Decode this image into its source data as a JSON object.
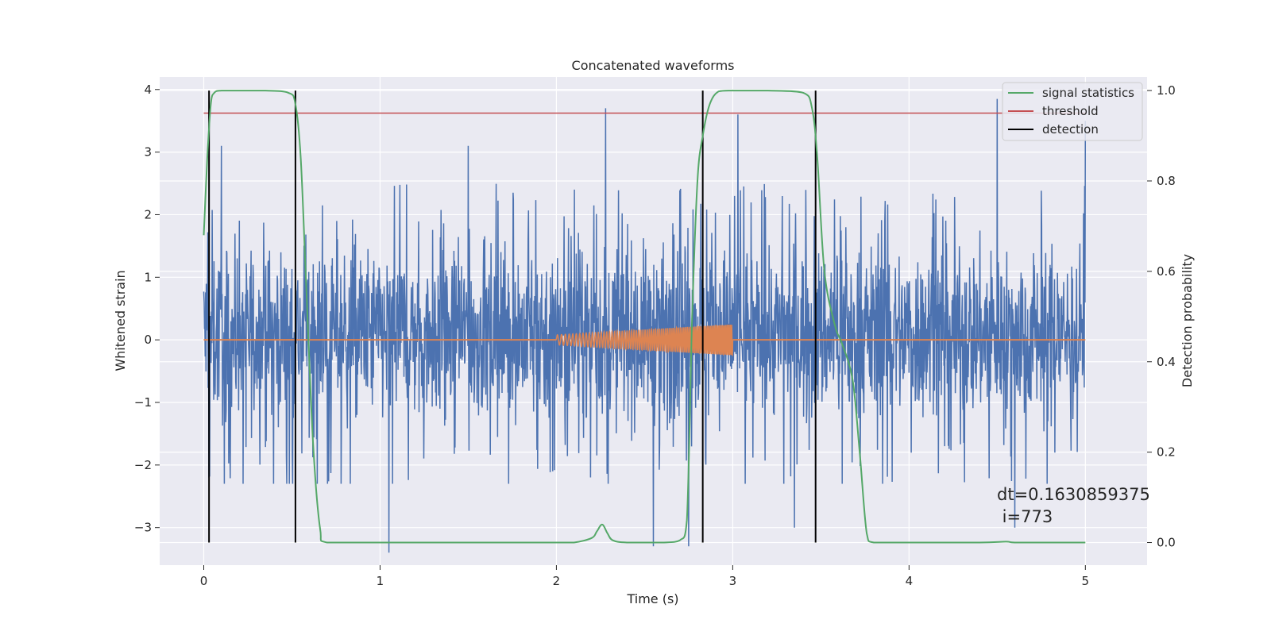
{
  "chart_data": {
    "type": "line",
    "title": "Concatenated waveforms",
    "xlabel": "Time (s)",
    "ylabel": "Whitened strain",
    "y2label": "Detection probability",
    "xlim": [
      -0.25,
      5.35
    ],
    "ylim": [
      -3.6,
      4.2
    ],
    "y2lim": [
      -0.05,
      1.03
    ],
    "x_ticks": [
      0,
      1,
      2,
      3,
      4,
      5
    ],
    "y_ticks": [
      -3,
      -2,
      -1,
      0,
      1,
      2,
      3,
      4
    ],
    "y2_ticks": [
      0.0,
      0.2,
      0.4,
      0.6,
      0.8,
      1.0
    ],
    "x_tick_labels": [
      "0",
      "1",
      "2",
      "3",
      "4",
      "5"
    ],
    "y_tick_labels": [
      "−3",
      "−2",
      "−1",
      "0",
      "1",
      "2",
      "3",
      "4"
    ],
    "y2_tick_labels": [
      "0.0",
      "0.2",
      "0.4",
      "0.6",
      "0.8",
      "1.0"
    ],
    "grid": true,
    "legend_position": "top-right",
    "colors": {
      "background": "#eaeaf2",
      "strain": "#4c72b0",
      "injection": "#dd8452",
      "statistics": "#55a868",
      "threshold": "#c44e52",
      "detection": "#000000",
      "grid": "#ffffff"
    },
    "series": [
      {
        "name": "signal statistics",
        "axis": "right",
        "x": [
          0.0,
          0.02,
          0.04,
          0.06,
          0.1,
          0.2,
          0.35,
          0.48,
          0.52,
          0.55,
          0.58,
          0.62,
          0.66,
          0.7,
          1.0,
          1.5,
          2.0,
          2.1,
          2.2,
          2.23,
          2.26,
          2.29,
          2.32,
          2.4,
          2.6,
          2.7,
          2.74,
          2.77,
          2.8,
          2.83,
          2.87,
          2.92,
          3.0,
          3.2,
          3.4,
          3.45,
          3.48,
          3.52,
          3.58,
          3.62,
          3.68,
          3.72,
          3.76,
          3.8,
          4.0,
          4.4,
          4.55,
          4.6,
          4.8,
          5.0
        ],
        "y": [
          0.68,
          0.85,
          0.97,
          0.995,
          1.0,
          1.0,
          1.0,
          0.995,
          0.97,
          0.85,
          0.58,
          0.22,
          0.03,
          0.0,
          0.0,
          0.0,
          0.0,
          0.0,
          0.01,
          0.025,
          0.04,
          0.02,
          0.005,
          0.0,
          0.0,
          0.005,
          0.05,
          0.5,
          0.8,
          0.9,
          0.97,
          0.998,
          1.0,
          1.0,
          0.995,
          0.96,
          0.85,
          0.6,
          0.48,
          0.44,
          0.36,
          0.2,
          0.02,
          0.0,
          0.0,
          0.0,
          0.002,
          0.0,
          0.0,
          0.0
        ]
      },
      {
        "name": "threshold",
        "axis": "right",
        "x": [
          0.0,
          5.0
        ],
        "y": [
          0.95,
          0.95
        ]
      }
    ],
    "detections": [
      0.03,
      0.52,
      2.83,
      3.47
    ],
    "detection_label": "detection",
    "strain_noise": {
      "axis": "left",
      "x_range": [
        0.0,
        5.0
      ],
      "typical_envelope": [
        -2.0,
        2.4
      ],
      "extremes": [
        {
          "x": 0.03,
          "y": -2.2
        },
        {
          "x": 0.1,
          "y": 3.1
        },
        {
          "x": 1.05,
          "y": -3.4
        },
        {
          "x": 1.5,
          "y": 3.1
        },
        {
          "x": 2.28,
          "y": 3.7
        },
        {
          "x": 2.55,
          "y": -3.3
        },
        {
          "x": 2.75,
          "y": -3.3
        },
        {
          "x": 3.03,
          "y": 3.6
        },
        {
          "x": 3.35,
          "y": -3.0
        },
        {
          "x": 4.5,
          "y": 3.85
        },
        {
          "x": 4.6,
          "y": -3.0
        },
        {
          "x": 5.0,
          "y": 3.5
        }
      ]
    },
    "injection": {
      "axis": "left",
      "x_range": [
        2.0,
        3.0
      ],
      "amplitude_start": 0.08,
      "amplitude_end": 0.25,
      "baseline": 0.0
    },
    "legend": [
      "signal statistics",
      "threshold",
      "detection"
    ],
    "annotation": {
      "line1": "dt=0.1630859375",
      "line2": " i=773"
    }
  }
}
